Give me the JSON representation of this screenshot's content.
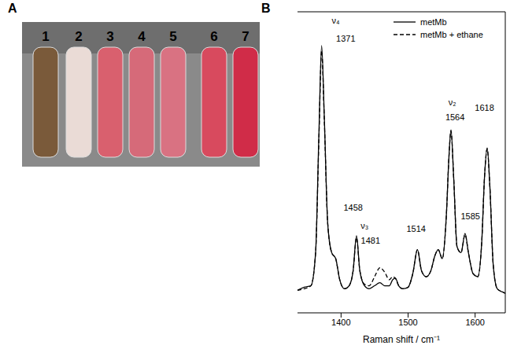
{
  "panel_labels": [
    "A",
    "B"
  ],
  "tubes": {
    "labels": [
      "1",
      "2",
      "3",
      "4",
      "5",
      "6",
      "7"
    ],
    "colors": [
      "#7a5a3a",
      "#eadbd6",
      "#d9606e",
      "#d66a79",
      "#d97282",
      "#d84a5e",
      "#d02c48"
    ]
  },
  "chart_data": {
    "type": "line",
    "x_label": "Raman shift / cm⁻¹",
    "x": [
      1335,
      1345,
      1355,
      1362,
      1367,
      1371,
      1375,
      1380,
      1386,
      1392,
      1398,
      1405,
      1412,
      1418,
      1423,
      1428,
      1435,
      1442,
      1450,
      1458,
      1465,
      1472,
      1477,
      1481,
      1486,
      1492,
      1500,
      1507,
      1514,
      1520,
      1527,
      1534,
      1540,
      1545,
      1551,
      1557,
      1561,
      1564,
      1568,
      1573,
      1579,
      1585,
      1590,
      1597,
      1604,
      1610,
      1614,
      1618,
      1622,
      1627,
      1633,
      1640,
      1645
    ],
    "series": [
      {
        "name": "metMb",
        "color": "#000000",
        "line_style": "solid",
        "values": [
          7.5,
          8.5,
          9,
          20,
          60,
          88.8,
          65,
          30,
          20,
          18,
          11,
          8,
          9,
          14,
          25.6,
          14,
          9,
          8,
          9,
          10,
          9,
          9,
          11,
          11.5,
          9,
          8,
          8.5,
          13,
          21,
          14,
          12,
          14,
          19,
          21,
          18,
          32,
          52,
          60.8,
          45,
          22,
          20,
          26.4,
          20,
          13,
          12,
          24,
          45,
          54.8,
          42,
          16,
          8,
          7,
          6.5
        ]
      },
      {
        "name": "metMb + ethane",
        "color": "#000000",
        "line_style": "dashed",
        "values": [
          7.5,
          8,
          9,
          20,
          58,
          87,
          64,
          30,
          20,
          18,
          11,
          8,
          9,
          14,
          25,
          14,
          9.5,
          9,
          12,
          15,
          13.5,
          11,
          12,
          11.5,
          9,
          8,
          8.5,
          13,
          21,
          14,
          12,
          14,
          19,
          21,
          18,
          32,
          52,
          60.5,
          45,
          22,
          20,
          26,
          20,
          13,
          12,
          24,
          45,
          54.5,
          42,
          16,
          8,
          7,
          6.5
        ]
      }
    ],
    "xlim": [
      1335,
      1645
    ],
    "xticks": [
      1400,
      1500,
      1600
    ],
    "ylim": [
      0,
      100
    ],
    "tick_labels": "x",
    "legend": "upper right",
    "marker": "none",
    "annotations": [
      {
        "text": "ν₄",
        "x": 1392,
        "y": 97
      },
      {
        "text": "1371",
        "x": 1407,
        "y": 91
      },
      {
        "text": "ν₂",
        "x": 1566,
        "y": 70
      },
      {
        "text": "1564",
        "x": 1570,
        "y": 65
      },
      {
        "text": "1618",
        "x": 1614,
        "y": 68
      },
      {
        "text": "1585",
        "x": 1593,
        "y": 32
      },
      {
        "text": "1514",
        "x": 1512,
        "y": 28
      },
      {
        "text": "1458",
        "x": 1418,
        "y": 35
      },
      {
        "text": "ν₃",
        "x": 1435,
        "y": 29
      },
      {
        "text": "1481",
        "x": 1444,
        "y": 24
      }
    ]
  }
}
